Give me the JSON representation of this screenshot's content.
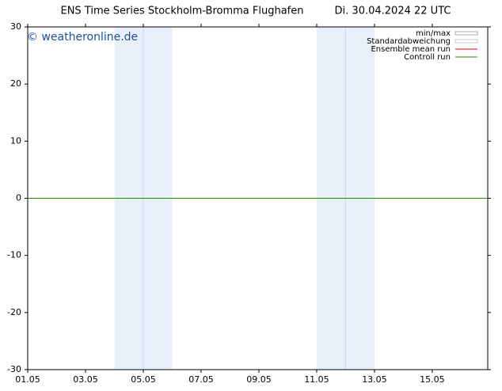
{
  "chart_data": {
    "type": "line",
    "title": "ENS Time Series Stockholm-Bromma Flughafen",
    "subtitle": "Di. 30.04.2024 22 UTC",
    "watermark": "© weatheronline.de",
    "xlim": [
      0,
      15.92
    ],
    "xticks": [
      {
        "value": 0,
        "label": "01.05"
      },
      {
        "value": 2,
        "label": "03.05"
      },
      {
        "value": 4,
        "label": "05.05"
      },
      {
        "value": 6,
        "label": "07.05"
      },
      {
        "value": 8,
        "label": "09.05"
      },
      {
        "value": 10,
        "label": "11.05"
      },
      {
        "value": 12,
        "label": "13.05"
      },
      {
        "value": 14,
        "label": "15.05"
      }
    ],
    "ylim": [
      -30,
      30
    ],
    "yticks": [
      -30,
      -20,
      -10,
      0,
      10,
      20,
      30
    ],
    "shaded_ranges": [
      [
        3,
        5
      ],
      [
        10,
        12
      ]
    ],
    "shade_color": "#e8f0fa",
    "series": [
      {
        "name": "min/max",
        "color": "#aaaaaa"
      },
      {
        "name": "Standardabweichung",
        "color": "#cccccc"
      },
      {
        "name": "Ensemble mean run",
        "color": "#dd0000"
      },
      {
        "name": "Controll run",
        "color": "#228800",
        "x": [
          0,
          15.92
        ],
        "values": [
          0,
          0
        ]
      }
    ]
  }
}
